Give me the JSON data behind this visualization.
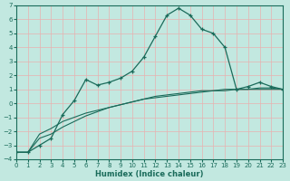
{
  "xlabel": "Humidex (Indice chaleur)",
  "background_color": "#c2e8e0",
  "grid_color": "#e8b0b0",
  "line_color": "#1a6b5a",
  "xlim": [
    0,
    23
  ],
  "ylim": [
    -4,
    7
  ],
  "xticks": [
    0,
    1,
    2,
    3,
    4,
    5,
    6,
    7,
    8,
    9,
    10,
    11,
    12,
    13,
    14,
    15,
    16,
    17,
    18,
    19,
    20,
    21,
    22,
    23
  ],
  "yticks": [
    -4,
    -3,
    -2,
    -1,
    0,
    1,
    2,
    3,
    4,
    5,
    6,
    7
  ],
  "s1_x": [
    0,
    1,
    2,
    3,
    4,
    5,
    6,
    7,
    8,
    9,
    10,
    11,
    12,
    13,
    14,
    15,
    16,
    17,
    18,
    19,
    20,
    21,
    22,
    23
  ],
  "s1_y": [
    -3.5,
    -3.5,
    -3.0,
    -2.5,
    -0.8,
    0.2,
    1.7,
    1.3,
    1.5,
    1.8,
    2.3,
    3.3,
    4.8,
    6.3,
    6.8,
    6.3,
    5.3,
    5.0,
    4.0,
    1.0,
    1.2,
    1.5,
    1.2,
    1.0
  ],
  "s2_x": [
    0,
    1,
    2,
    3,
    4,
    5,
    6,
    7,
    8,
    9,
    10,
    11,
    12,
    13,
    14,
    15,
    16,
    17,
    18,
    19,
    20,
    21,
    22,
    23
  ],
  "s2_y": [
    -3.5,
    -3.5,
    -2.2,
    -1.8,
    -1.3,
    -1.0,
    -0.7,
    -0.5,
    -0.3,
    -0.1,
    0.1,
    0.3,
    0.5,
    0.6,
    0.7,
    0.8,
    0.9,
    0.9,
    1.0,
    1.0,
    1.0,
    1.0,
    1.0,
    1.0
  ],
  "s3_x": [
    0,
    1,
    2,
    3,
    4,
    5,
    6,
    7,
    8,
    9,
    10,
    11,
    12,
    13,
    14,
    15,
    16,
    17,
    18,
    19,
    20,
    21,
    22,
    23
  ],
  "s3_y": [
    -3.5,
    -3.5,
    -2.5,
    -2.2,
    -1.7,
    -1.3,
    -0.9,
    -0.6,
    -0.3,
    -0.1,
    0.1,
    0.3,
    0.4,
    0.5,
    0.6,
    0.7,
    0.8,
    0.9,
    0.9,
    1.0,
    1.0,
    1.1,
    1.1,
    1.0
  ]
}
